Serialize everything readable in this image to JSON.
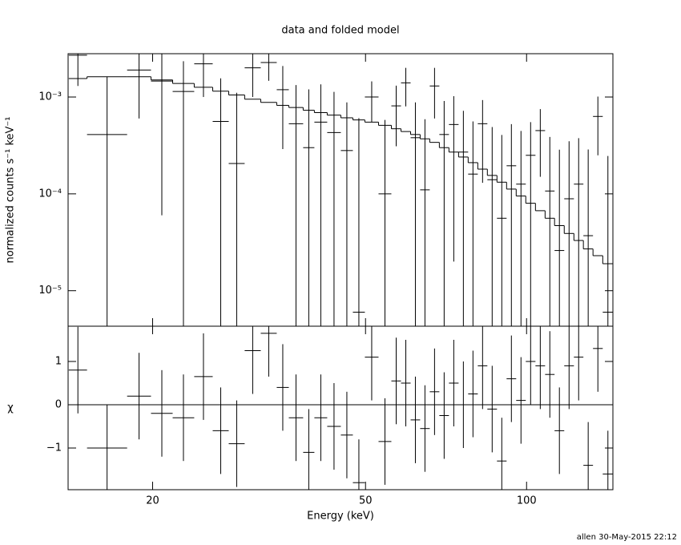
{
  "chart_data": [
    {
      "type": "spectrum",
      "title": "data and folded model",
      "ylabel": "normalized counts s⁻¹ keV⁻¹",
      "log_x": true,
      "log_y": true,
      "xlim": [
        13.9,
        145
      ],
      "ylim": [
        4.3e-06,
        0.0028
      ],
      "yticks": [
        {
          "value": 1e-05,
          "label": "10⁻⁵"
        },
        {
          "value": 0.0001,
          "label": "10⁻⁴"
        },
        {
          "value": 0.001,
          "label": "10⁻³"
        }
      ],
      "x_lo": [
        13.94,
        15.08,
        17.92,
        19.86,
        21.8,
        23.92,
        25.9,
        27.75,
        29.72,
        31.85,
        34.12,
        35.94,
        38.23,
        40.12,
        42.4,
        44.96,
        47.35,
        49.86,
        52.88,
        55.88,
        58.25,
        60.71,
        63.25,
        65.92,
        68.7,
        71.6,
        74.63,
        77.77,
        81.06,
        84.47,
        88.04,
        91.76,
        95.63,
        99.66,
        103.9,
        108.3,
        112.8,
        117.6,
        122.6,
        127.7,
        133.1,
        138.8
      ],
      "x_hi": [
        15.08,
        17.92,
        19.86,
        21.8,
        23.92,
        25.9,
        27.75,
        29.72,
        31.85,
        34.12,
        35.94,
        38.23,
        40.12,
        42.4,
        44.96,
        47.35,
        49.86,
        52.88,
        55.88,
        58.25,
        60.71,
        63.25,
        65.92,
        68.7,
        71.6,
        74.63,
        77.77,
        81.06,
        84.47,
        88.04,
        91.76,
        95.63,
        99.66,
        103.9,
        108.3,
        112.8,
        117.6,
        122.6,
        127.7,
        133.1,
        138.8,
        145.1
      ],
      "data": {
        "color": "#000000",
        "values": [
          0.0027,
          0.00041,
          0.0019,
          0.00146,
          0.00114,
          0.0022,
          0.00056,
          0.000206,
          0.002,
          0.00227,
          0.00119,
          0.00053,
          0.0003,
          0.00055,
          0.00043,
          0.00028,
          6e-06,
          0.001,
          0.0001,
          0.00081,
          0.0014,
          0.00038,
          0.00011,
          0.0013,
          0.00041,
          0.00052,
          0.00027,
          0.00016,
          0.00053,
          0.00014,
          5.6e-05,
          0.000195,
          0.000126,
          0.00025,
          0.00045,
          0.000107,
          2.6e-05,
          8.9e-05,
          0.000126,
          3.7e-05,
          0.00063,
          6e-06
        ],
        "errors": [
          0.0014,
          0.0012,
          0.0013,
          0.0014,
          0.0012,
          0.0012,
          0.001,
          0.0009,
          0.001,
          0.0008,
          0.0009,
          0.0008,
          0.0009,
          0.0008,
          0.0007,
          0.0006,
          0.0006,
          0.00045,
          0.00048,
          0.0005,
          0.0006,
          0.0005,
          0.00048,
          0.0007,
          0.0005,
          0.0005,
          0.00045,
          0.0004,
          0.0004,
          0.00035,
          0.00035,
          0.00033,
          0.00032,
          0.0003,
          0.0003,
          0.00028,
          0.00026,
          0.00026,
          0.00025,
          0.00025,
          0.00038,
          0.00024
        ]
      },
      "model": {
        "color": "#000000",
        "values": [
          0.00155,
          0.00162,
          0.00162,
          0.0015,
          0.00138,
          0.00126,
          0.00115,
          0.00105,
          0.00095,
          0.00088,
          0.00082,
          0.00078,
          0.00073,
          0.00069,
          0.00065,
          0.00061,
          0.00058,
          0.00055,
          0.00051,
          0.00047,
          0.00044,
          0.00041,
          0.00037,
          0.00034,
          0.0003,
          0.00027,
          0.00024,
          0.00021,
          0.00018,
          0.000155,
          0.000132,
          0.000112,
          9.5e-05,
          8e-05,
          6.7e-05,
          5.6e-05,
          4.7e-05,
          3.9e-05,
          3.3e-05,
          2.7e-05,
          2.3e-05,
          1.9e-05
        ]
      }
    },
    {
      "type": "residual",
      "xlabel": "Energy (keV)",
      "ylabel": "χ",
      "log_x": true,
      "xlim": [
        13.9,
        145
      ],
      "xticks": [
        20,
        50,
        100
      ],
      "ylim": [
        -1.963,
        1.815
      ],
      "yticks": [
        {
          "value": -1,
          "label": "−1"
        },
        0,
        1
      ],
      "zero_line": 0,
      "zero_color": "#00dd00",
      "data": {
        "color": "#000000",
        "values": [
          0.8,
          -1.0,
          0.2,
          -0.2,
          -0.3,
          0.65,
          -0.6,
          -0.9,
          1.25,
          1.65,
          0.4,
          -0.3,
          -1.1,
          -0.3,
          -0.5,
          -0.7,
          -1.8,
          1.1,
          -0.85,
          0.55,
          0.5,
          -0.35,
          -0.55,
          0.3,
          -0.25,
          0.5,
          0,
          0.25,
          0.9,
          -0.1,
          -1.3,
          0.6,
          0.1,
          1.0,
          0.9,
          0.7,
          -0.6,
          0.9,
          1.1,
          -1.4,
          1.3,
          -1.6
        ],
        "errors": [
          1,
          1,
          1,
          1,
          1,
          1,
          1,
          1,
          1,
          1,
          1,
          1,
          1,
          1,
          1,
          1,
          1,
          1,
          1,
          1,
          1,
          1,
          1,
          1,
          1,
          1,
          1,
          1,
          1,
          1,
          1,
          1,
          1,
          1,
          1,
          1,
          1,
          1,
          1,
          1,
          1,
          1
        ]
      }
    }
  ],
  "footer": "allen 30-May-2015 22:12"
}
